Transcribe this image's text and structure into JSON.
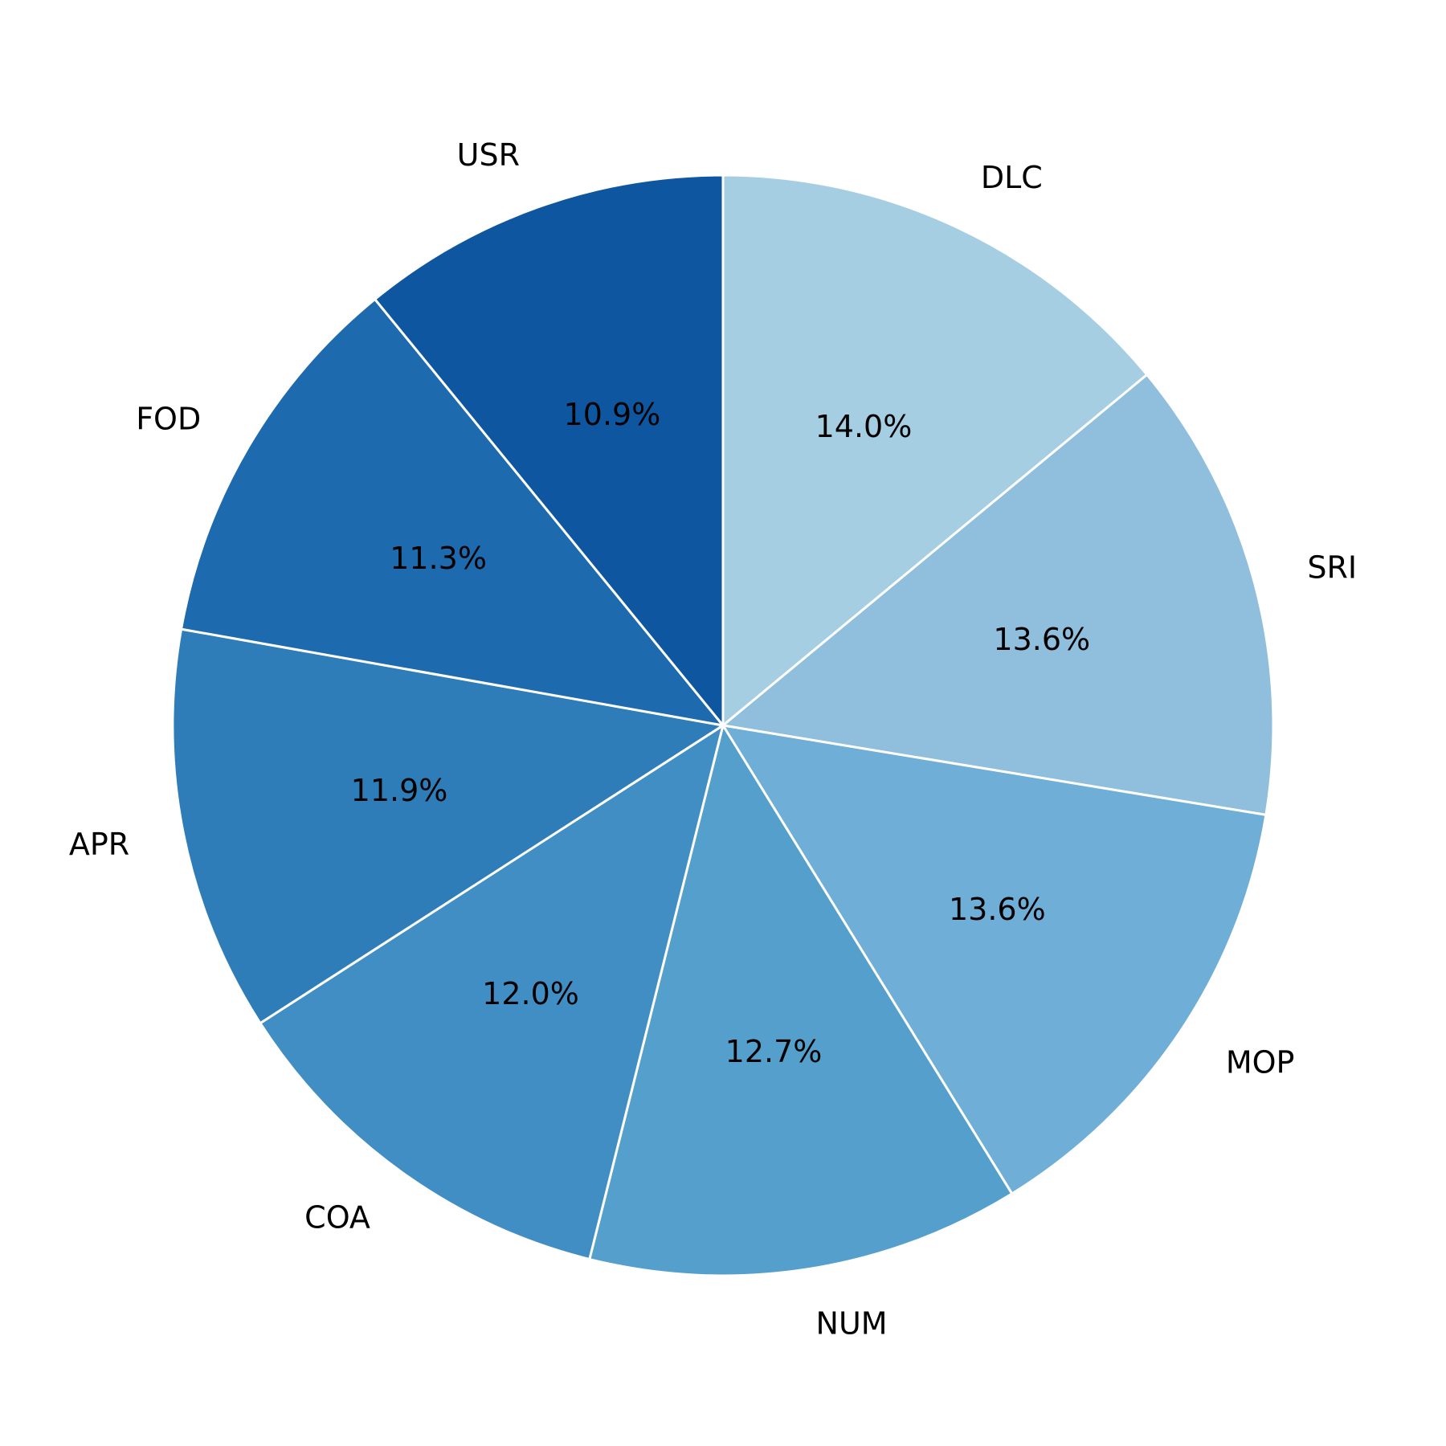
{
  "chart_data": {
    "type": "pie",
    "start": "top",
    "direction": "clockwise",
    "slices": [
      {
        "label": "DLC",
        "value": 14.0,
        "display": "14.0%",
        "color": "#a6cee3"
      },
      {
        "label": "SRI",
        "value": 13.6,
        "display": "13.6%",
        "color": "#8fbfdc"
      },
      {
        "label": "MOP",
        "value": 13.6,
        "display": "13.6%",
        "color": "#6eaed7"
      },
      {
        "label": "NUM",
        "value": 12.7,
        "display": "12.7%",
        "color": "#559fcc"
      },
      {
        "label": "COA",
        "value": 12.0,
        "display": "12.0%",
        "color": "#418ec5"
      },
      {
        "label": "APR",
        "value": 11.9,
        "display": "11.9%",
        "color": "#2e7db9"
      },
      {
        "label": "FOD",
        "value": 11.3,
        "display": "11.3%",
        "color": "#1e6aae"
      },
      {
        "label": "USR",
        "value": 10.9,
        "display": "10.9%",
        "color": "#0e57a0"
      }
    ]
  }
}
